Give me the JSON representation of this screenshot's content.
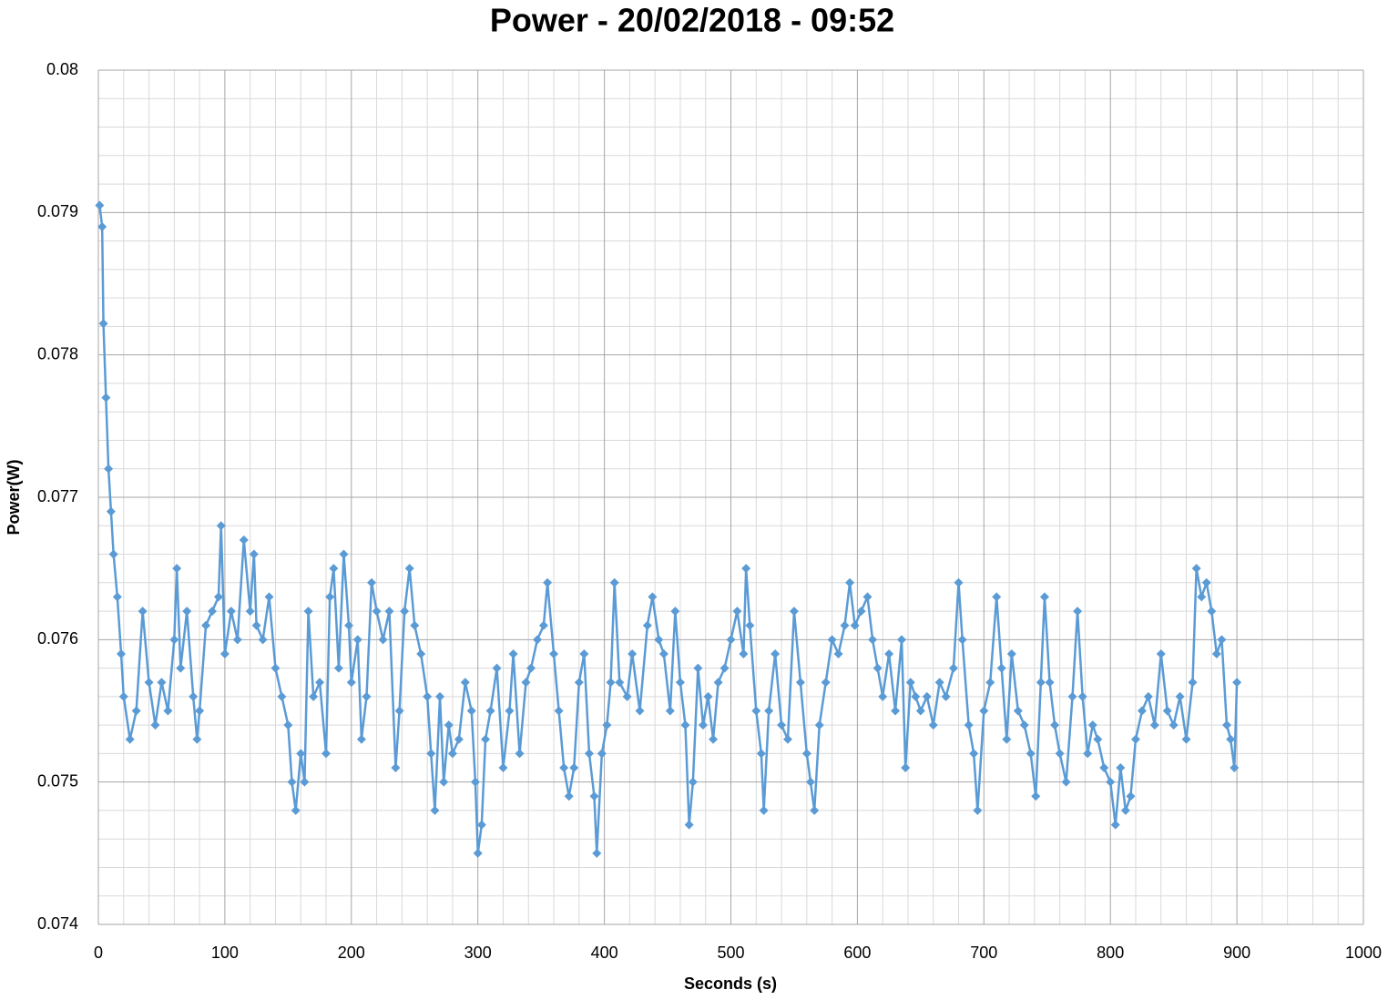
{
  "chart_data": {
    "type": "line",
    "title": "Power - 20/02/2018 - 09:52",
    "xlabel": "Seconds (s)",
    "ylabel": "Power(W)",
    "xlim": [
      0,
      1000
    ],
    "xticks": [
      0,
      100,
      200,
      300,
      400,
      500,
      600,
      700,
      800,
      900,
      1000
    ],
    "ylim": [
      0.074,
      0.08
    ],
    "yticks": [
      0.074,
      0.075,
      0.076,
      0.077,
      0.078,
      0.079,
      0.08
    ],
    "grid": true,
    "marker": "diamond",
    "x": [
      1,
      3,
      4,
      6,
      8,
      10,
      12,
      15,
      18,
      20,
      25,
      30,
      35,
      40,
      45,
      50,
      55,
      60,
      62,
      65,
      70,
      75,
      78,
      80,
      85,
      90,
      95,
      97,
      100,
      105,
      110,
      115,
      120,
      123,
      125,
      130,
      135,
      140,
      145,
      150,
      153,
      156,
      160,
      163,
      166,
      170,
      175,
      180,
      183,
      186,
      190,
      194,
      198,
      200,
      205,
      208,
      212,
      216,
      220,
      225,
      230,
      235,
      238,
      242,
      246,
      250,
      255,
      260,
      263,
      266,
      270,
      273,
      277,
      280,
      285,
      290,
      295,
      298,
      300,
      303,
      306,
      310,
      315,
      320,
      325,
      328,
      333,
      338,
      342,
      347,
      352,
      355,
      360,
      364,
      368,
      372,
      376,
      380,
      384,
      388,
      392,
      394,
      398,
      402,
      405,
      408,
      412,
      418,
      422,
      428,
      434,
      438,
      443,
      447,
      452,
      456,
      460,
      464,
      467,
      470,
      474,
      478,
      482,
      486,
      490,
      495,
      500,
      505,
      510,
      512,
      515,
      520,
      524,
      526,
      530,
      535,
      540,
      545,
      550,
      555,
      560,
      563,
      566,
      570,
      575,
      580,
      585,
      590,
      594,
      598,
      603,
      608,
      612,
      616,
      620,
      625,
      630,
      635,
      638,
      642,
      646,
      650,
      655,
      660,
      665,
      670,
      676,
      680,
      683,
      688,
      692,
      695,
      700,
      705,
      710,
      714,
      718,
      722,
      727,
      732,
      737,
      741,
      745,
      748,
      752,
      756,
      760,
      765,
      770,
      774,
      778,
      782,
      786,
      790,
      795,
      800,
      804,
      808,
      812,
      816,
      820,
      825,
      830,
      835,
      840,
      845,
      850,
      855,
      860,
      865,
      868,
      872,
      876,
      880,
      884,
      888,
      892,
      895,
      898,
      900
    ],
    "series": [
      {
        "color": "#5b9bd5",
        "values": [
          0.07905,
          0.0789,
          0.07822,
          0.0777,
          0.0772,
          0.0769,
          0.0766,
          0.0763,
          0.0759,
          0.0756,
          0.0753,
          0.0755,
          0.0762,
          0.0757,
          0.0754,
          0.0757,
          0.0755,
          0.076,
          0.0765,
          0.0758,
          0.0762,
          0.0756,
          0.0753,
          0.0755,
          0.0761,
          0.0762,
          0.0763,
          0.0768,
          0.0759,
          0.0762,
          0.076,
          0.0767,
          0.0762,
          0.0766,
          0.0761,
          0.076,
          0.0763,
          0.0758,
          0.0756,
          0.0754,
          0.075,
          0.0748,
          0.0752,
          0.075,
          0.0762,
          0.0756,
          0.0757,
          0.0752,
          0.0763,
          0.0765,
          0.0758,
          0.0766,
          0.0761,
          0.0757,
          0.076,
          0.0753,
          0.0756,
          0.0764,
          0.0762,
          0.076,
          0.0762,
          0.0751,
          0.0755,
          0.0762,
          0.0765,
          0.0761,
          0.0759,
          0.0756,
          0.0752,
          0.0748,
          0.0756,
          0.075,
          0.0754,
          0.0752,
          0.0753,
          0.0757,
          0.0755,
          0.075,
          0.0745,
          0.0747,
          0.0753,
          0.0755,
          0.0758,
          0.0751,
          0.0755,
          0.0759,
          0.0752,
          0.0757,
          0.0758,
          0.076,
          0.0761,
          0.0764,
          0.0759,
          0.0755,
          0.0751,
          0.0749,
          0.0751,
          0.0757,
          0.0759,
          0.0752,
          0.0749,
          0.0745,
          0.0752,
          0.0754,
          0.0757,
          0.0764,
          0.0757,
          0.0756,
          0.0759,
          0.0755,
          0.0761,
          0.0763,
          0.076,
          0.0759,
          0.0755,
          0.0762,
          0.0757,
          0.0754,
          0.0747,
          0.075,
          0.0758,
          0.0754,
          0.0756,
          0.0753,
          0.0757,
          0.0758,
          0.076,
          0.0762,
          0.0759,
          0.0765,
          0.0761,
          0.0755,
          0.0752,
          0.0748,
          0.0755,
          0.0759,
          0.0754,
          0.0753,
          0.0762,
          0.0757,
          0.0752,
          0.075,
          0.0748,
          0.0754,
          0.0757,
          0.076,
          0.0759,
          0.0761,
          0.0764,
          0.0761,
          0.0762,
          0.0763,
          0.076,
          0.0758,
          0.0756,
          0.0759,
          0.0755,
          0.076,
          0.0751,
          0.0757,
          0.0756,
          0.0755,
          0.0756,
          0.0754,
          0.0757,
          0.0756,
          0.0758,
          0.0764,
          0.076,
          0.0754,
          0.0752,
          0.0748,
          0.0755,
          0.0757,
          0.0763,
          0.0758,
          0.0753,
          0.0759,
          0.0755,
          0.0754,
          0.0752,
          0.0749,
          0.0757,
          0.0763,
          0.0757,
          0.0754,
          0.0752,
          0.075,
          0.0756,
          0.0762,
          0.0756,
          0.0752,
          0.0754,
          0.0753,
          0.0751,
          0.075,
          0.0747,
          0.0751,
          0.0748,
          0.0749,
          0.0753,
          0.0755,
          0.0756,
          0.0754,
          0.0759,
          0.0755,
          0.0754,
          0.0756,
          0.0753,
          0.0757,
          0.0765,
          0.0763,
          0.0764,
          0.0762,
          0.0759,
          0.076,
          0.0754,
          0.0753,
          0.0751,
          0.0757
        ]
      }
    ]
  }
}
